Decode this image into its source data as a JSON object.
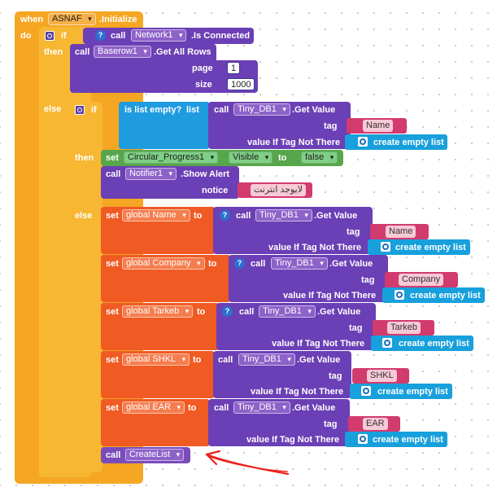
{
  "event": {
    "when": "when",
    "component": "ASNAF",
    "event_name": ".Initialize",
    "do": "do"
  },
  "keywords": {
    "if": "if",
    "then": "then",
    "else": "else",
    "call": "call",
    "set": "set",
    "to": "to"
  },
  "outer_if": {
    "condition": {
      "component": "Network1",
      "method": ".Is Connected"
    },
    "then": {
      "component": "Baserow1",
      "method": ".Get All Rows",
      "params": [
        {
          "name": "page",
          "value": "1"
        },
        {
          "name": "size",
          "value": "1000"
        }
      ]
    }
  },
  "inner_if": {
    "condition": {
      "label": "is list empty?",
      "list_label": "list"
    },
    "tinydb": {
      "component": "Tiny_DB1",
      "method": ".Get Value",
      "tag_label": "tag",
      "default_label": "value If Tag Not There",
      "empty_list_label": "create empty list"
    },
    "condition_tag": "Name",
    "then": {
      "set_component": "Circular_Progress1",
      "set_property": "Visible",
      "set_value": "false",
      "alert_component": "Notifier1",
      "alert_method": ".Show Alert",
      "notice_label": "notice",
      "notice_value": "لايوجد انترنت"
    },
    "else_sets": [
      {
        "var": "global Name",
        "tag": "Name"
      },
      {
        "var": "global Company",
        "tag": "Company"
      },
      {
        "var": "global Tarkeb",
        "tag": "Tarkeb"
      },
      {
        "var": "global SHKL",
        "tag": "SHKL"
      },
      {
        "var": "global EAR",
        "tag": "EAR"
      }
    ],
    "final_call": "CreateList"
  },
  "annotation": {
    "arrow_color": "#e8231e"
  },
  "colors": {
    "event": "#f5a623",
    "control": "#f7b733",
    "component": "#6b3fb5",
    "logic": "#58a64b",
    "list": "#1f9be0",
    "text": "#d23b6e",
    "variable": "#f05a23",
    "procedure": "#7a4cbb"
  }
}
